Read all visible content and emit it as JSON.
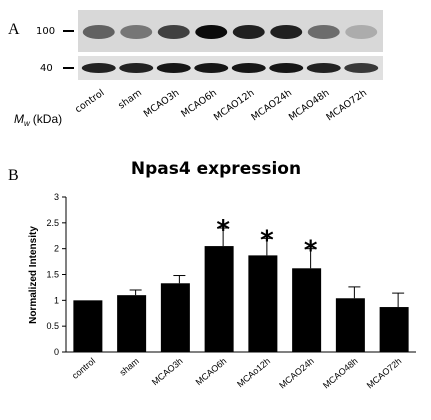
{
  "blot": {
    "panel_label": "A",
    "markers": [
      "100",
      "40"
    ],
    "mw_label_symbol": "M",
    "mw_label_sub": "w",
    "mw_label_unit": "(kDa)",
    "lanes": [
      "control",
      "sham",
      "MCAO3h",
      "MCAO6h",
      "MCAO12h",
      "MCAO24h",
      "MCAO48h",
      "MCAO72h"
    ],
    "band_100_intensity": [
      0.55,
      0.45,
      0.7,
      0.95,
      0.85,
      0.85,
      0.5,
      0.2
    ],
    "band_40_intensity": [
      0.85,
      0.85,
      0.9,
      0.9,
      0.9,
      0.9,
      0.85,
      0.75
    ]
  },
  "chart_panel_label": "B",
  "chart_data": {
    "type": "bar",
    "title": "Npas4 expression",
    "ylabel": "Normalized Intensity",
    "xlabel": "",
    "ylim": [
      0,
      3
    ],
    "yticks": [
      "0",
      "0.5",
      "1",
      "1.5",
      "2",
      "2.5",
      "3"
    ],
    "categories": [
      "control",
      "sham",
      "MCAO3h",
      "MCAO6h",
      "MCAo12h",
      "MCAO24h",
      "MCAO48h",
      "MCAO72h"
    ],
    "values": [
      1.0,
      1.1,
      1.33,
      2.05,
      1.87,
      1.62,
      1.04,
      0.87
    ],
    "errors": [
      0,
      0.1,
      0.15,
      0.35,
      0.33,
      0.38,
      0.22,
      0.27
    ],
    "significant": [
      false,
      false,
      false,
      true,
      true,
      true,
      false,
      false
    ],
    "significance_marker": "*",
    "bar_color": "#000000",
    "grid": false
  }
}
